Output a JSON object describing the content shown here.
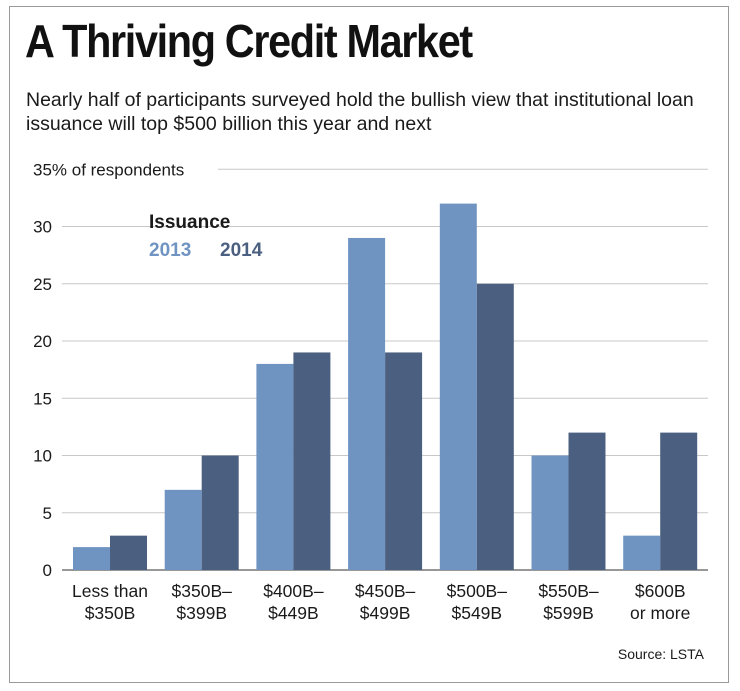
{
  "title": "A Thriving Credit Market",
  "subtitle": "Nearly half of participants surveyed hold the bullish view that institutional loan issuance will top $500 billion this year and next",
  "source": "Source: LSTA",
  "colors": {
    "s2013": "#6f94c2",
    "s2014": "#4b6080",
    "grid": "#c8c8c8",
    "text": "#1a1a1a"
  },
  "chart_data": {
    "type": "bar",
    "ylabel": "35% of respondents",
    "ylim": [
      0,
      35
    ],
    "yticks": [
      0,
      5,
      10,
      15,
      20,
      25,
      30
    ],
    "grid": true,
    "legend": {
      "title": "Issuance",
      "position": "top-left"
    },
    "categories": [
      [
        "Less than",
        "$350B"
      ],
      [
        "$350B–",
        "$399B"
      ],
      [
        "$400B–",
        "$449B"
      ],
      [
        "$450B–",
        "$499B"
      ],
      [
        "$500B–",
        "$549B"
      ],
      [
        "$550B–",
        "$599B"
      ],
      [
        "$600B",
        "or more"
      ]
    ],
    "series": [
      {
        "name": "2013",
        "values": [
          2,
          7,
          18,
          29,
          32,
          10,
          3
        ]
      },
      {
        "name": "2014",
        "values": [
          3,
          10,
          19,
          19,
          25,
          12,
          12
        ]
      }
    ]
  }
}
